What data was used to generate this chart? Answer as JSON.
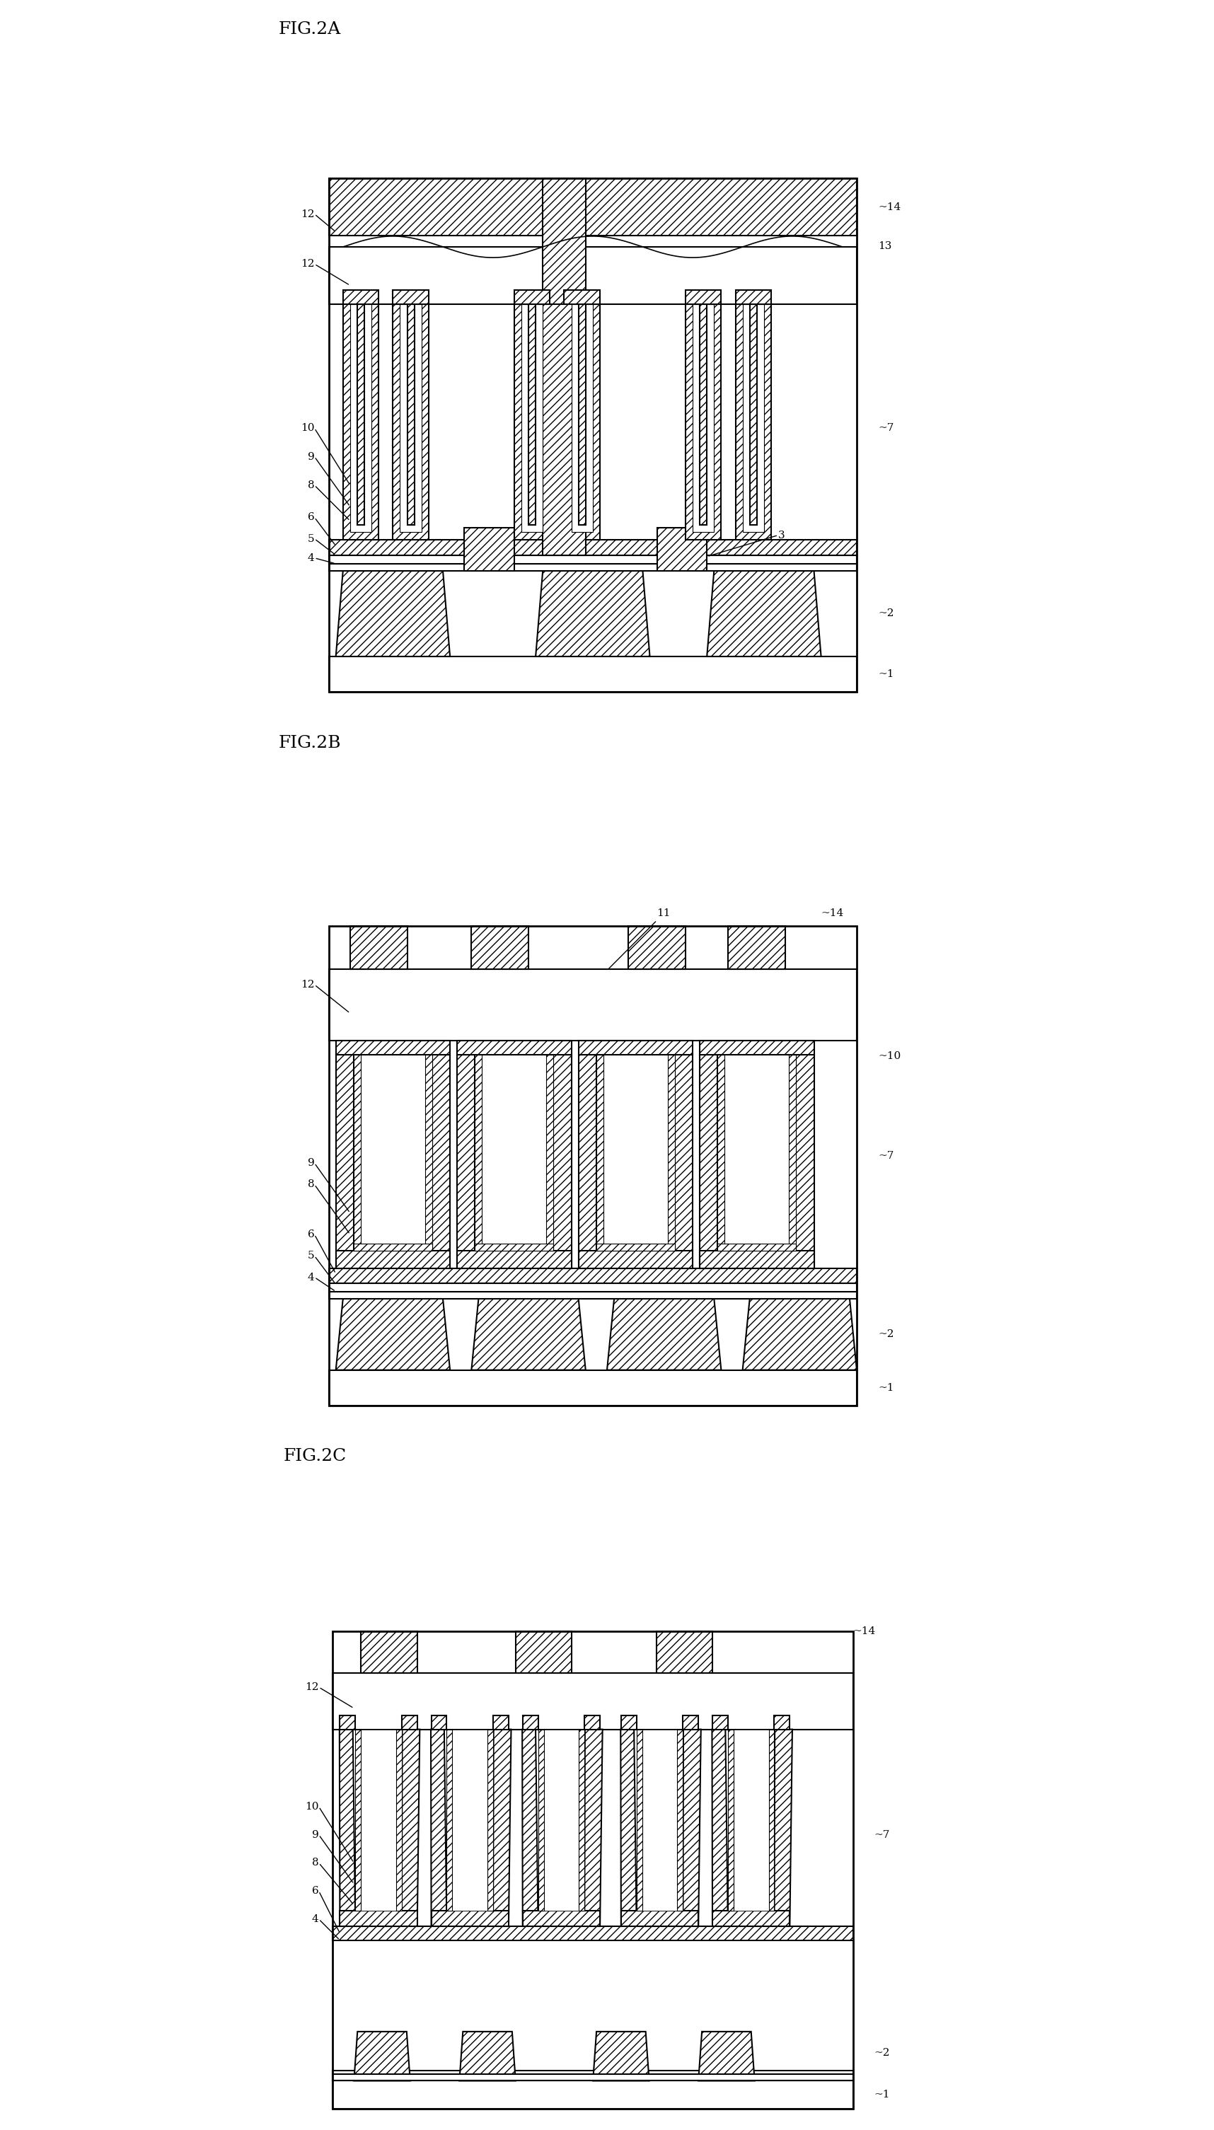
{
  "bg_color": "#ffffff",
  "lw": 1.5,
  "hatch": "///",
  "diagrams": {
    "2A": {
      "title": "FIG.2A",
      "xlim": [
        0,
        100
      ],
      "ylim": [
        0,
        100
      ]
    },
    "2B": {
      "title": "FIG.2B"
    },
    "2C": {
      "title": "FIG.2C"
    }
  }
}
